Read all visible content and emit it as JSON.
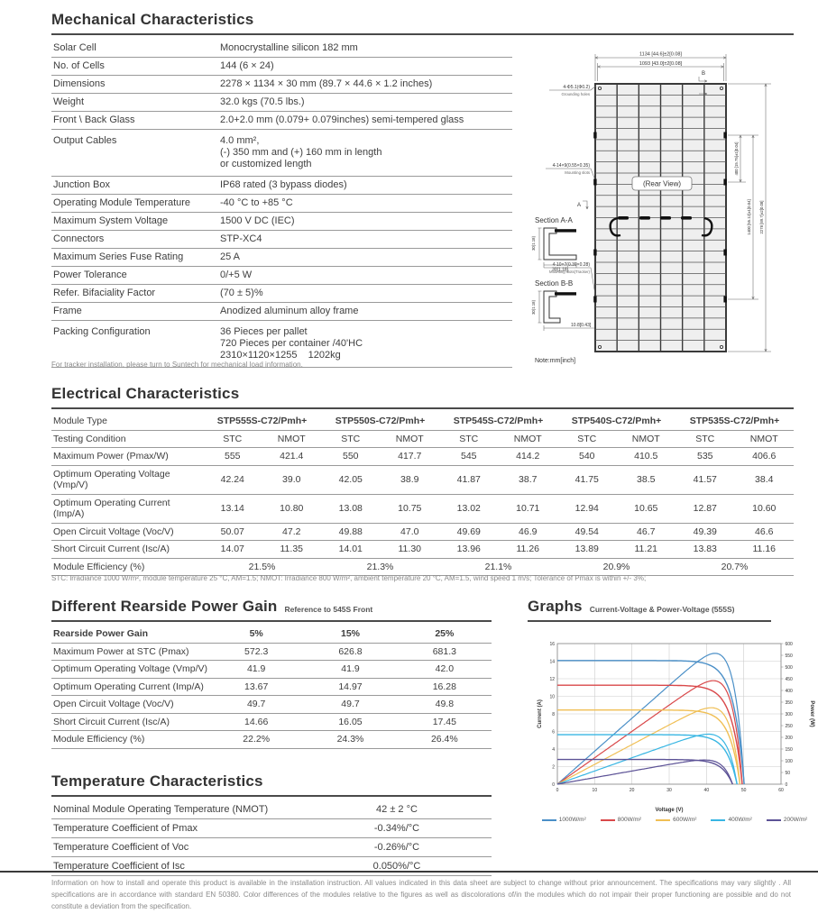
{
  "colors": {
    "title": "#333333",
    "rule": "#4a4a4a",
    "table_line": "#9a9a9a",
    "text": "#3e3e3e",
    "muted": "#8a8a8a"
  },
  "mechanical": {
    "title": "Mechanical Characteristics",
    "rows": [
      {
        "label": "Solar Cell",
        "value": "Monocrystalline silicon 182 mm"
      },
      {
        "label": "No. of Cells",
        "value": "144 (6 × 24)"
      },
      {
        "label": "Dimensions",
        "value": "2278 × 1134 × 30 mm (89.7 × 44.6 × 1.2 inches)"
      },
      {
        "label": "Weight",
        "value": "32.0 kgs  (70.5 lbs.)"
      },
      {
        "label": "Front \\ Back Glass",
        "value": "2.0+2.0 mm (0.079+ 0.079inches) semi-tempered glass"
      },
      {
        "label": "Output Cables",
        "lines": [
          "4.0 mm²,",
          "(-) 350 mm and (+) 160 mm in length",
          "or customized length"
        ]
      },
      {
        "label": "Junction Box",
        "value": "IP68 rated (3 bypass diodes)"
      },
      {
        "label": "Operating Module Temperature",
        "value": "-40 °C to +85 °C"
      },
      {
        "label": "Maximum System Voltage",
        "value": "1500 V DC (IEC)"
      },
      {
        "label": "Connectors",
        "value": "STP-XC4"
      },
      {
        "label": "Maximum Series Fuse Rating",
        "value": "25 A"
      },
      {
        "label": "Power Tolerance",
        "value": "0/+5 W"
      },
      {
        "label": "Refer. Bifaciality Factor",
        "value": "(70 ± 5)%"
      },
      {
        "label": "Frame",
        "value": "Anodized aluminum alloy frame"
      },
      {
        "label": "Packing Configuration",
        "lines": [
          "36 Pieces per pallet",
          "720 Pieces per container /40'HC",
          "2310×1120×1255    1202kg"
        ]
      }
    ],
    "note": "For tracker installation, please turn to Suntech for mechanical load information."
  },
  "drawing": {
    "dim_width": "1134 [44.6]±2[0.08]",
    "dim_width_inner": "1093 [43.0]±2[0.08]",
    "grounding_dim": "4-Φ5.1(Φ0.2)",
    "grounding_name": "Grounding holes",
    "mounting_dim": "4-14×9(0.55×0.35)",
    "mounting_name": "Mounting slots",
    "tracker_dim": "4-10×7(0.39×0.28)",
    "tracker_name": "Mounting slots(Tracker)",
    "rear_view": "(Rear View)",
    "marker_a": "A",
    "marker_b": "B",
    "section_a": "Section A-A",
    "section_b": "Section B-B",
    "dim_frame_h": "30(1.18)",
    "dim_frame_w": "30[1.18]",
    "dim_foot": "10.8[0.43]",
    "dim_400": "400 [15.75]±1[0.04]",
    "dim_1400": "1400 [55.12]±1[0.04]",
    "dim_2278": "2278 [89.7]±2[0.08]",
    "note": "Note:mm[inch]"
  },
  "electrical": {
    "title": "Electrical Characteristics",
    "module_type_label": "Module Type",
    "modules": [
      "STP555S-C72/Pmh+",
      "STP550S-C72/Pmh+",
      "STP545S-C72/Pmh+",
      "STP540S-C72/Pmh+",
      "STP535S-C72/Pmh+"
    ],
    "testing_condition_label": "Testing Condition",
    "stc_label": "STC",
    "nmot_label": "NMOT",
    "rows": [
      {
        "label": "Maximum Power (Pmax/W)",
        "values": [
          "555",
          "421.4",
          "550",
          "417.7",
          "545",
          "414.2",
          "540",
          "410.5",
          "535",
          "406.6"
        ]
      },
      {
        "label": "Optimum Operating Voltage (Vmp/V)",
        "values": [
          "42.24",
          "39.0",
          "42.05",
          "38.9",
          "41.87",
          "38.7",
          "41.75",
          "38.5",
          "41.57",
          "38.4"
        ]
      },
      {
        "label": "Optimum Operating Current (Imp/A)",
        "values": [
          "13.14",
          "10.80",
          "13.08",
          "10.75",
          "13.02",
          "10.71",
          "12.94",
          "10.65",
          "12.87",
          "10.60"
        ]
      },
      {
        "label": "Open Circuit Voltage (Voc/V)",
        "values": [
          "50.07",
          "47.2",
          "49.88",
          "47.0",
          "49.69",
          "46.9",
          "49.54",
          "46.7",
          "49.39",
          "46.6"
        ]
      },
      {
        "label": "Short Circuit Current (Isc/A)",
        "values": [
          "14.07",
          "11.35",
          "14.01",
          "11.30",
          "13.96",
          "11.26",
          "13.89",
          "11.21",
          "13.83",
          "11.16"
        ]
      }
    ],
    "efficiency": {
      "label": "Module Efficiency (%)",
      "values": [
        "21.5%",
        "21.3%",
        "21.1%",
        "20.9%",
        "20.7%"
      ]
    },
    "footnote": "STC: lrradiance 1000 W/m², module temperature 25 °C, AM=1.5; NMOT: Irradiance 800 W/m², ambient temperature 20 °C, AM=1.5, wind speed 1 m/s; Tolerance of Pmax is within +/- 3%;"
  },
  "rearside": {
    "title": "Different Rearside Power Gain",
    "subtitle": "Reference to 545S Front",
    "header_label": "Rearside Power Gain",
    "header_values": [
      "5%",
      "15%",
      "25%"
    ],
    "rows": [
      {
        "label": "Maximum Power at STC (Pmax)",
        "values": [
          "572.3",
          "626.8",
          "681.3"
        ]
      },
      {
        "label": "Optimum Operating Voltage (Vmp/V)",
        "values": [
          "41.9",
          "41.9",
          "42.0"
        ]
      },
      {
        "label": "Optimum Operating Current (Imp/A)",
        "values": [
          "13.67",
          "14.97",
          "16.28"
        ]
      },
      {
        "label": "Open Circuit Voltage (Voc/V)",
        "values": [
          "49.7",
          "49.7",
          "49.8"
        ]
      },
      {
        "label": "Short Circuit Current (Isc/A)",
        "values": [
          "14.66",
          "16.05",
          "17.45"
        ]
      },
      {
        "label": "Module Efficiency (%)",
        "values": [
          "22.2%",
          "24.3%",
          "26.4%"
        ]
      }
    ]
  },
  "graphs": {
    "title": "Graphs",
    "subtitle": "Current-Voltage & Power-Voltage (555S)"
  },
  "chart_data": {
    "type": "line",
    "title": "Current-Voltage & Power-Voltage (555S)",
    "xlabel": "Voltage (V)",
    "ylabel_left": "Current (A)",
    "ylabel_right": "Power (W)",
    "xlim": [
      0,
      60
    ],
    "ylim_left": [
      0,
      16
    ],
    "ylim_right": [
      0,
      600
    ],
    "x_tick_step": 10,
    "y_left_tick_step": 2,
    "y_right_tick_step": 50,
    "grid": true,
    "legend_position": "bottom",
    "series": [
      {
        "name": "1000W/m²",
        "color": "#4a8fc7",
        "isc": 14.07,
        "voc": 50.1,
        "vmp": 42.2,
        "imp": 13.14,
        "pmax": 555
      },
      {
        "name": "800W/m²",
        "color": "#d9484a",
        "isc": 11.26,
        "voc": 49.6,
        "vmp": 42.0,
        "imp": 10.6,
        "pmax": 445
      },
      {
        "name": "600W/m²",
        "color": "#f0bf54",
        "isc": 8.44,
        "voc": 49.0,
        "vmp": 41.7,
        "imp": 8.0,
        "pmax": 334
      },
      {
        "name": "400W/m²",
        "color": "#38b6e3",
        "isc": 5.63,
        "voc": 48.2,
        "vmp": 41.2,
        "imp": 5.4,
        "pmax": 222
      },
      {
        "name": "200W/m²",
        "color": "#5c5296",
        "isc": 2.81,
        "voc": 47.0,
        "vmp": 40.5,
        "imp": 2.7,
        "pmax": 109
      }
    ]
  },
  "temperature": {
    "title": "Temperature Characteristics",
    "rows": [
      {
        "label": "Nominal Module Operating Temperature  (NMOT)",
        "value": "42 ± 2 °C"
      },
      {
        "label": "Temperature Coefficient of Pmax",
        "value": "-0.34%/°C"
      },
      {
        "label": "Temperature Coefficient of Voc",
        "value": "-0.26%/°C"
      },
      {
        "label": "Temperature Coefficient of Isc",
        "value": "0.050%/°C"
      }
    ]
  },
  "footer": {
    "text": "Information on how to install and operate this product is available in the installation instruction. All values indicated in this data sheet are subject to change without prior announcement. The specifications may vary slightly . All specifications are in accordance with standard EN 50380. Color differences of the modules relative to the figures as well as discolorations of/in the modules which do not impair their proper functioning are possible and do not constitute a deviation from the specification."
  }
}
